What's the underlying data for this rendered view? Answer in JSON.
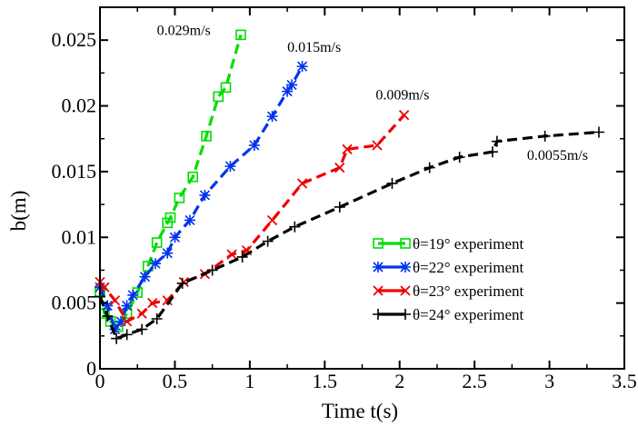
{
  "chart_data": {
    "type": "line",
    "title": "",
    "xlabel": "Time t(s)",
    "ylabel": "b(m)",
    "xlim": [
      0,
      3.5
    ],
    "ylim": [
      0,
      0.0275
    ],
    "grid": false,
    "legend_position": "lower-right",
    "x_ticks": [
      "0",
      "0.5",
      "1",
      "1.5",
      "2",
      "2.5",
      "3",
      "3.5"
    ],
    "y_ticks": [
      "0",
      "0.005",
      "0.01",
      "0.015",
      "0.02",
      "0.025"
    ],
    "series": [
      {
        "name": "θ=19° experiment",
        "color": "#00dd00",
        "marker": "square",
        "x": [
          0.0,
          0.03,
          0.07,
          0.12,
          0.18,
          0.25,
          0.32,
          0.38,
          0.45,
          0.47,
          0.53,
          0.62,
          0.71,
          0.79,
          0.84,
          0.94
        ],
        "y": [
          0.0058,
          0.0042,
          0.0036,
          0.0032,
          0.0042,
          0.0058,
          0.0078,
          0.0096,
          0.0111,
          0.0115,
          0.013,
          0.0146,
          0.0177,
          0.0207,
          0.0214,
          0.0254
        ]
      },
      {
        "name": "θ=22° experiment",
        "color": "#0033ee",
        "marker": "asterisk",
        "x": [
          0.0,
          0.05,
          0.1,
          0.14,
          0.18,
          0.22,
          0.3,
          0.37,
          0.45,
          0.5,
          0.6,
          0.7,
          0.87,
          1.03,
          1.15,
          1.25,
          1.28,
          1.35
        ],
        "y": [
          0.0062,
          0.0048,
          0.003,
          0.0036,
          0.0048,
          0.0056,
          0.007,
          0.008,
          0.0088,
          0.01,
          0.0113,
          0.0132,
          0.0154,
          0.017,
          0.0192,
          0.0211,
          0.0216,
          0.023
        ]
      },
      {
        "name": "θ=23° experiment",
        "color": "#ee0000",
        "marker": "x",
        "x": [
          0.0,
          0.03,
          0.1,
          0.18,
          0.28,
          0.35,
          0.45,
          0.56,
          0.7,
          0.88,
          0.98,
          1.15,
          1.35,
          1.6,
          1.65,
          1.85,
          2.03
        ],
        "y": [
          0.0066,
          0.0062,
          0.0052,
          0.0036,
          0.0042,
          0.005,
          0.0052,
          0.0066,
          0.0072,
          0.0087,
          0.009,
          0.0113,
          0.0141,
          0.0153,
          0.0167,
          0.017,
          0.0193
        ]
      },
      {
        "name": "θ=24° experiment",
        "color": "#000000",
        "marker": "plus",
        "x": [
          0.0,
          0.05,
          0.11,
          0.18,
          0.28,
          0.38,
          0.55,
          0.75,
          0.95,
          1.12,
          1.3,
          1.6,
          1.95,
          2.2,
          2.4,
          2.62,
          2.65,
          2.97,
          3.33
        ],
        "y": [
          0.0055,
          0.004,
          0.0023,
          0.0026,
          0.003,
          0.0038,
          0.0065,
          0.0075,
          0.0085,
          0.0097,
          0.0108,
          0.0123,
          0.0141,
          0.0153,
          0.0161,
          0.0165,
          0.0173,
          0.0177,
          0.018
        ]
      }
    ],
    "annotations": [
      {
        "text": "0.029m/s",
        "x": 0.38,
        "y": 0.0254
      },
      {
        "text": "0.015m/s",
        "x": 1.25,
        "y": 0.0241
      },
      {
        "text": "0.009m/s",
        "x": 1.84,
        "y": 0.0205
      },
      {
        "text": "0.0055m/s",
        "x": 2.85,
        "y": 0.0159
      }
    ]
  }
}
